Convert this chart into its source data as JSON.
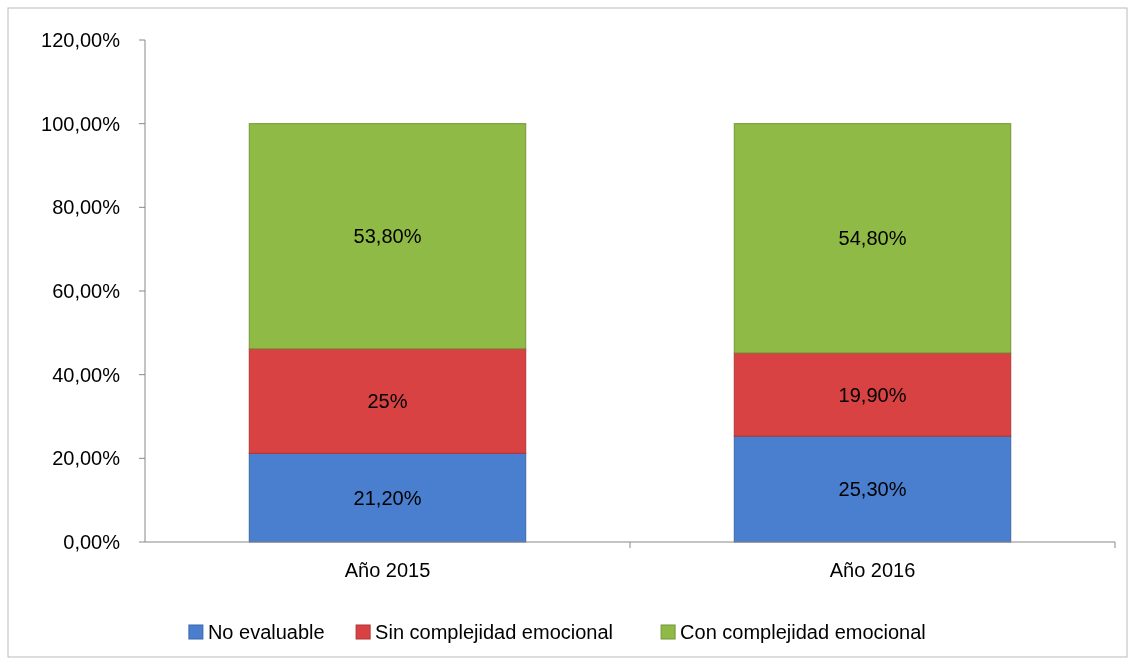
{
  "chart_data": {
    "type": "bar",
    "stacked": true,
    "categories": [
      "Año 2015",
      "Año 2016"
    ],
    "series": [
      {
        "name": "No evaluable",
        "color": "#4a7fcf",
        "values": [
          21.2,
          25.3
        ],
        "value_labels": [
          "21,20%",
          "25,30%"
        ]
      },
      {
        "name": "Sin complejidad emocional",
        "color": "#d84242",
        "values": [
          25,
          19.9
        ],
        "value_labels": [
          "25%",
          "19,90%"
        ]
      },
      {
        "name": "Con complejidad emocional",
        "color": "#8fba45",
        "values": [
          53.8,
          54.8
        ],
        "value_labels": [
          "53,80%",
          "54,80%"
        ]
      }
    ],
    "ylim": [
      0,
      120
    ],
    "yticks": [
      {
        "value": 0,
        "label": "0,00%"
      },
      {
        "value": 20,
        "label": "20,00%"
      },
      {
        "value": 40,
        "label": "40,00%"
      },
      {
        "value": 60,
        "label": "60,00%"
      },
      {
        "value": 80,
        "label": "80,00%"
      },
      {
        "value": 100,
        "label": "100,00%"
      },
      {
        "value": 120,
        "label": "120,00%"
      }
    ],
    "grid": false,
    "legend": "bottom"
  }
}
